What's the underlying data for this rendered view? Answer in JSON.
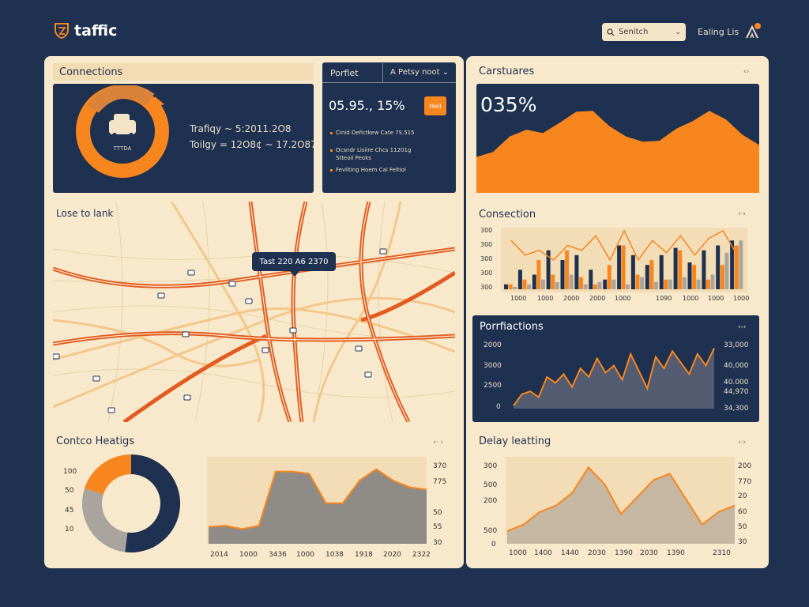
{
  "header": {
    "app_name": "taffic",
    "search_placeholder": "Senitch",
    "link_label": "Ealing Lis"
  },
  "connections": {
    "title": "Connections",
    "donut_label": "TTTDA",
    "stats": [
      "Trafiqy ~ 5:2011.2O8",
      "Toilgy = 12O8¢ ~ 17.2O87"
    ]
  },
  "portfolio": {
    "tab1": "Porflet",
    "tab2": "A Petsy noot ⌄",
    "value": "05.95., 15%",
    "button_label": "Hell",
    "items": [
      "Cinid Defictkew Cate 7S.515",
      "Ocsndr Lisiire  Chcs 11201g",
      "Stteoil Peoks",
      "Fevliting Hoem Cal Feltiol"
    ]
  },
  "map": {
    "title": "Lose to lank",
    "tooltip": "Tast 220 A6 2370"
  },
  "contco": {
    "title": "Contco Heatigs",
    "opts": "‹· ›",
    "donut_axis": [
      "100",
      "50",
      "45",
      "10"
    ],
    "area_x": [
      "2014",
      "1000",
      "3436",
      "1000",
      "1038",
      "1918",
      "2020",
      "2322"
    ],
    "area_y": [
      "370",
      "775",
      "50",
      "55",
      "30"
    ]
  },
  "carstuares": {
    "title": "Carstuares",
    "opts": "‹›",
    "value": "035%"
  },
  "consection": {
    "title": "Consection",
    "opts": "‹·›",
    "y_ticks": [
      "300",
      "300",
      "300",
      "300",
      "300",
      "10"
    ],
    "x_ticks": [
      "1000",
      "1000",
      "2000",
      "2000",
      "1000",
      "1090",
      "1000",
      "1000",
      "1000"
    ]
  },
  "portfactions": {
    "title": "Porrfiactions",
    "opts": "‹-›",
    "y_left": [
      "2000",
      "3000",
      "2500",
      "0"
    ],
    "y_right": [
      "33,000",
      "40,000",
      "40.000",
      "44,970",
      "34,300"
    ]
  },
  "delay": {
    "title": "Delay leatting",
    "opts": "‹·›",
    "y_left": [
      "300",
      "500",
      "200",
      "500",
      "0"
    ],
    "y_right": [
      "200",
      "770",
      "20",
      "60",
      "50",
      "30"
    ],
    "x_ticks": [
      "1000",
      "1400",
      "1440",
      "2030",
      "1390",
      "2030",
      "1390",
      "2310"
    ]
  },
  "chart_data": [
    {
      "type": "area",
      "title": "Carstuares",
      "values": [
        42,
        48,
        66,
        74,
        70,
        82,
        95,
        96,
        78,
        66,
        60,
        61,
        75,
        84,
        96,
        86,
        68,
        56
      ]
    },
    {
      "type": "bar",
      "title": "Consection",
      "series": [
        {
          "name": "",
          "color": "#1f3150",
          "values": [
            2,
            8,
            6,
            16,
            12,
            14,
            8,
            4,
            18,
            14,
            10,
            14,
            17,
            11,
            16,
            18,
            20
          ]
        },
        {
          "name": "",
          "color": "#f7861f",
          "values": [
            2,
            4,
            12,
            6,
            16,
            5,
            2,
            10,
            18,
            6,
            12,
            4,
            16,
            10,
            4,
            10,
            18
          ]
        },
        {
          "name": "",
          "color": "#a9a49d",
          "values": [
            1,
            2,
            4,
            3,
            6,
            2,
            3,
            4,
            2,
            5,
            3,
            4,
            5,
            4,
            6,
            15,
            20
          ]
        }
      ],
      "line": [
        20,
        14,
        16,
        12,
        18,
        16,
        22,
        12,
        24,
        12,
        20,
        15,
        22,
        14,
        21,
        24,
        14
      ]
    },
    {
      "type": "area",
      "title": "Porrfiactions",
      "values": [
        2,
        10,
        12,
        8,
        22,
        18,
        24,
        15,
        28,
        22,
        35,
        25,
        30,
        20,
        38,
        26,
        14,
        36,
        28,
        40,
        32,
        24,
        38,
        30,
        42
      ]
    },
    {
      "type": "area",
      "title": "Contco Heatigs",
      "values": [
        15,
        16,
        13,
        16,
        64,
        64,
        62,
        36,
        36,
        56,
        66,
        56,
        50,
        48
      ]
    },
    {
      "type": "area",
      "title": "Delay leatting",
      "values": [
        12,
        18,
        30,
        36,
        48,
        72,
        56,
        28,
        44,
        60,
        66,
        42,
        18,
        30,
        36
      ]
    },
    {
      "type": "pie",
      "title": "Contco Heatigs",
      "values": [
        52,
        28,
        20
      ]
    }
  ]
}
